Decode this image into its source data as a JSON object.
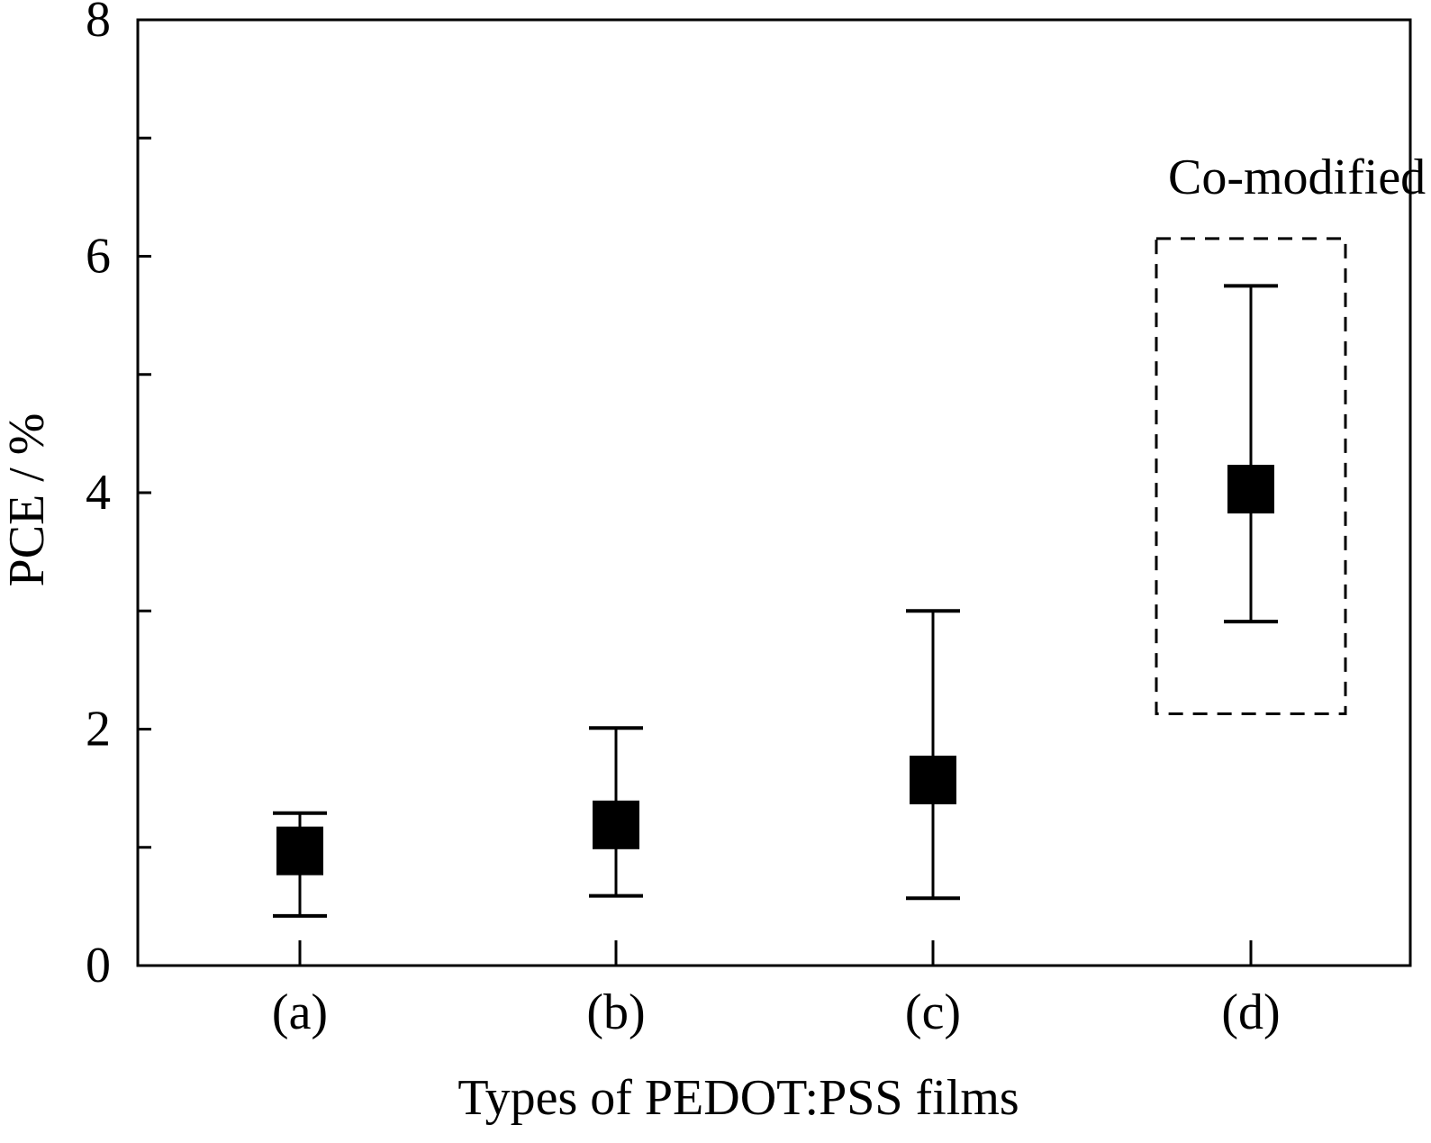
{
  "chart_data": {
    "type": "scatter",
    "title": "",
    "xlabel": "Types of PEDOT:PSS films",
    "ylabel": "PCE / %",
    "categories": [
      "(a)",
      "(b)",
      "(c)",
      "(d)"
    ],
    "series": [
      {
        "values": [
          0.97,
          1.19,
          1.57,
          4.03
        ],
        "error_low": [
          0.42,
          0.59,
          0.57,
          2.91
        ],
        "error_high": [
          1.29,
          2.01,
          3.0,
          5.75
        ],
        "color": "#000000",
        "marker": "square"
      }
    ],
    "ylim": [
      0,
      8
    ],
    "y_major_ticks": [
      0,
      2,
      4,
      6,
      8
    ],
    "y_minor_ticks": [
      1,
      3,
      5,
      7
    ],
    "grid": false,
    "annotations": [
      {
        "text": "Co-modified film",
        "box_category": "(d)",
        "box_y_range": [
          2.13,
          6.15
        ],
        "box_style": "dashed"
      }
    ]
  }
}
